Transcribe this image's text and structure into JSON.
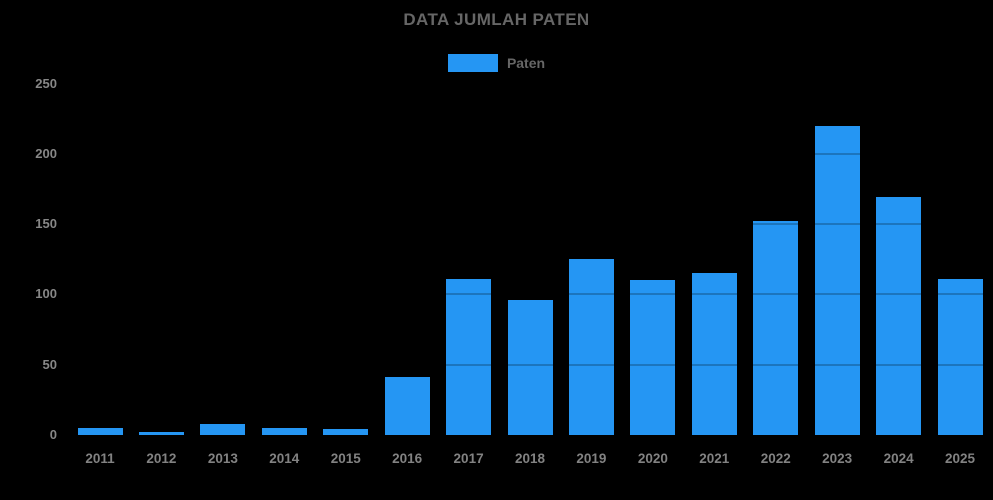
{
  "chart_data": {
    "type": "bar",
    "title": "DATA JUMLAH PATEN",
    "legend": {
      "position": "top",
      "entries": [
        {
          "label": "Paten"
        }
      ]
    },
    "categories": [
      "2011",
      "2012",
      "2013",
      "2014",
      "2015",
      "2016",
      "2017",
      "2018",
      "2019",
      "2020",
      "2021",
      "2022",
      "2023",
      "2024",
      "2025"
    ],
    "series": [
      {
        "name": "Paten",
        "values": [
          5,
          2,
          8,
          5,
          4,
          41,
          111,
          96,
          125,
          110,
          115,
          152,
          220,
          169,
          111
        ]
      }
    ],
    "xlabel": "",
    "ylabel": "",
    "ylim": [
      0,
      250
    ],
    "yticks": [
      0,
      50,
      100,
      150,
      200,
      250
    ],
    "grid": "horizontal gridlines drawn over bars, invisible on black background",
    "colors": {
      "bar": "#2596F3",
      "background": "#000000",
      "title_text": "#666666",
      "legend_text": "#666666",
      "tick_text": "#878787",
      "gridline_over_bar": "rgba(0,0,0,0.22)"
    }
  }
}
